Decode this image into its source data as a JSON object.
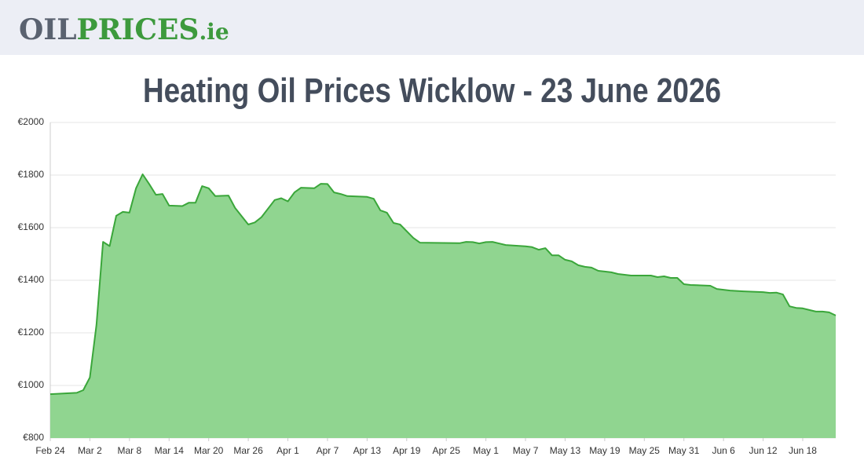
{
  "logo": {
    "part1": "OIL",
    "part2": "PRICES",
    "part3": ".ie"
  },
  "chart_data": {
    "type": "area",
    "title": "Heating Oil Prices Wicklow - 23 June 2026",
    "x": [
      0,
      4,
      5,
      6,
      7,
      8,
      9,
      10,
      11,
      12,
      13,
      14,
      15,
      16,
      17,
      18,
      20,
      21,
      22,
      23,
      24,
      25,
      27,
      28,
      30,
      31,
      32,
      34,
      35,
      36,
      37,
      38,
      40,
      41,
      42,
      43,
      44,
      45,
      48,
      49,
      50,
      51,
      52,
      53,
      55,
      56,
      62,
      63,
      64,
      65,
      66,
      67,
      69,
      72,
      73,
      74,
      75,
      76,
      77,
      78,
      79,
      80,
      81,
      82,
      83,
      84,
      85,
      86,
      88,
      91,
      92,
      93,
      94,
      95,
      96,
      97,
      100,
      101,
      103,
      105,
      108,
      109,
      110,
      111,
      112,
      113,
      114,
      115,
      116,
      117,
      118,
      119
    ],
    "series": [
      {
        "color": "#3aa63a",
        "fill": "#90d590",
        "values": [
          967,
          972,
          982,
          1030,
          1230,
          1546,
          1530,
          1645,
          1660,
          1657,
          1750,
          1803,
          1765,
          1725,
          1728,
          1684,
          1682,
          1695,
          1695,
          1758,
          1750,
          1720,
          1722,
          1675,
          1612,
          1620,
          1640,
          1705,
          1712,
          1700,
          1734,
          1752,
          1750,
          1767,
          1766,
          1734,
          1728,
          1720,
          1717,
          1710,
          1666,
          1657,
          1618,
          1612,
          1561,
          1543,
          1541,
          1546,
          1545,
          1540,
          1545,
          1546,
          1534,
          1529,
          1526,
          1516,
          1522,
          1495,
          1495,
          1478,
          1472,
          1457,
          1451,
          1448,
          1436,
          1433,
          1430,
          1424,
          1418,
          1418,
          1412,
          1415,
          1409,
          1409,
          1385,
          1382,
          1379,
          1367,
          1361,
          1358,
          1355,
          1352,
          1353,
          1346,
          1301,
          1295,
          1293,
          1287,
          1281,
          1281,
          1278,
          1266
        ]
      }
    ],
    "xlim": [
      0,
      119
    ],
    "xticks": [
      {
        "value": 0,
        "label": "Feb 24"
      },
      {
        "value": 6,
        "label": "Mar 2"
      },
      {
        "value": 12,
        "label": "Mar 8"
      },
      {
        "value": 18,
        "label": "Mar 14"
      },
      {
        "value": 24,
        "label": "Mar 20"
      },
      {
        "value": 30,
        "label": "Mar 26"
      },
      {
        "value": 36,
        "label": "Apr 1"
      },
      {
        "value": 42,
        "label": "Apr 7"
      },
      {
        "value": 48,
        "label": "Apr 13"
      },
      {
        "value": 54,
        "label": "Apr 19"
      },
      {
        "value": 60,
        "label": "Apr 25"
      },
      {
        "value": 66,
        "label": "May 1"
      },
      {
        "value": 72,
        "label": "May 7"
      },
      {
        "value": 78,
        "label": "May 13"
      },
      {
        "value": 84,
        "label": "May 19"
      },
      {
        "value": 90,
        "label": "May 25"
      },
      {
        "value": 96,
        "label": "May 31"
      },
      {
        "value": 102,
        "label": "Jun 6"
      },
      {
        "value": 108,
        "label": "Jun 12"
      },
      {
        "value": 114,
        "label": "Jun 18"
      }
    ],
    "ylim": [
      800,
      2000
    ],
    "yticks": [
      {
        "value": 800,
        "label": "€800"
      },
      {
        "value": 1000,
        "label": "€1000"
      },
      {
        "value": 1200,
        "label": "€1200"
      },
      {
        "value": 1400,
        "label": "€1400"
      },
      {
        "value": 1600,
        "label": "€1600"
      },
      {
        "value": 1800,
        "label": "€1800"
      },
      {
        "value": 2000,
        "label": "€2000"
      }
    ],
    "grid": true
  }
}
